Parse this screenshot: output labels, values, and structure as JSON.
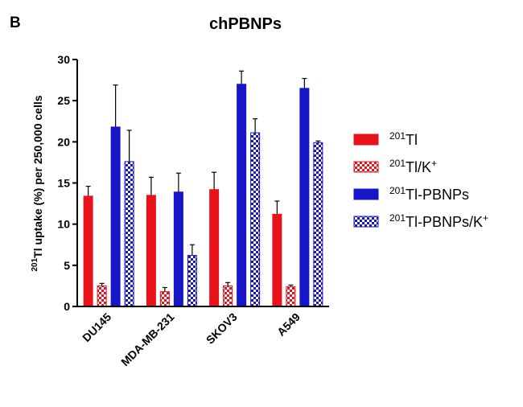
{
  "panel_label": "B",
  "chart_data": {
    "type": "bar",
    "title": "chPBNPs",
    "categories": [
      "DU145",
      "MDA-MB-231",
      "SKOV3",
      "A549"
    ],
    "ylabel_sup": "201",
    "ylabel_main": "Tl uptake (%) per 250,000 cells",
    "ylim": [
      0,
      30
    ],
    "yticks": [
      0,
      5,
      10,
      15,
      20,
      25,
      30
    ],
    "legend_position": "right",
    "grid": false,
    "series": [
      {
        "name": "201Tl",
        "name_sup": "201",
        "name_main": "Tl",
        "name_tail_sup": "",
        "color": "#e8121b",
        "pattern": "solid",
        "values": [
          13.4,
          13.5,
          14.2,
          11.2
        ],
        "errors": [
          1.2,
          2.2,
          2.1,
          1.6
        ]
      },
      {
        "name": "201Tl/K+",
        "name_sup": "201",
        "name_main": "Tl/K",
        "name_tail_sup": "+",
        "color": "#e8121b",
        "pattern": "checker",
        "values": [
          2.5,
          1.8,
          2.5,
          2.4
        ],
        "errors": [
          0.3,
          0.5,
          0.4,
          0.2
        ]
      },
      {
        "name": "201Tl-PBNPs",
        "name_sup": "201",
        "name_main": "Tl-PBNPs",
        "name_tail_sup": "",
        "color": "#1616c8",
        "pattern": "solid",
        "values": [
          21.8,
          13.9,
          27.0,
          26.5
        ],
        "errors": [
          5.1,
          2.3,
          1.6,
          1.2
        ]
      },
      {
        "name": "201Tl-PBNPs/K+",
        "name_sup": "201",
        "name_main": "Tl-PBNPs/K",
        "name_tail_sup": "+",
        "color": "#1616c8",
        "pattern": "checker",
        "values": [
          17.6,
          6.2,
          21.1,
          19.9
        ],
        "errors": [
          3.8,
          1.3,
          1.7,
          0.2
        ]
      }
    ]
  }
}
